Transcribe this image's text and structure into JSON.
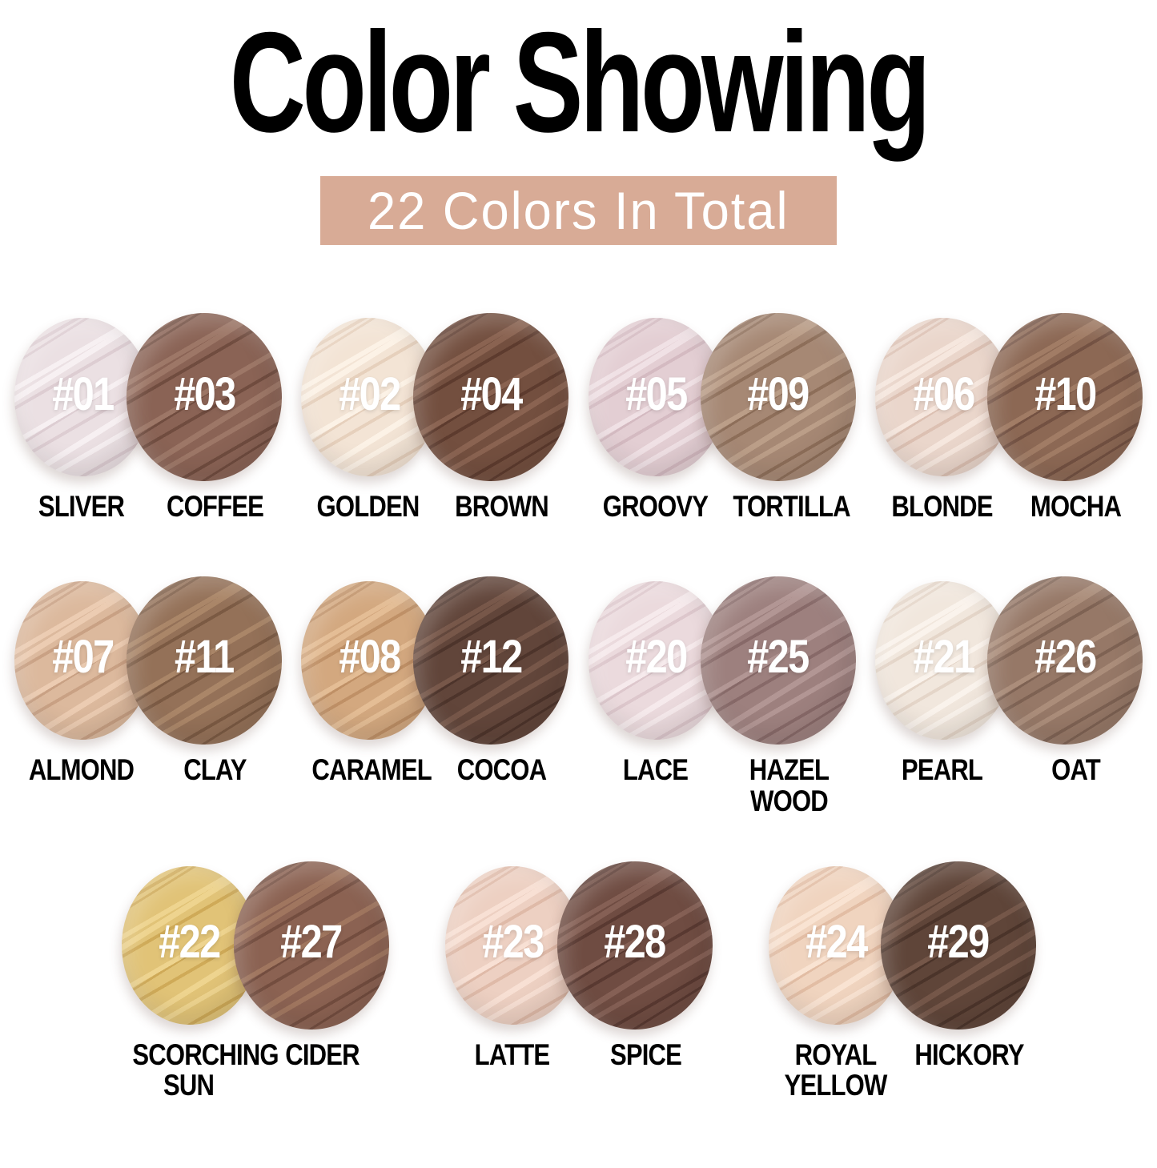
{
  "title": "Color Showing",
  "banner": {
    "text": "22 Colors In Total",
    "bg": "#d8ab96"
  },
  "rows": [
    {
      "pairs": [
        {
          "left": {
            "num": "#01",
            "name": "SLIVER",
            "base": "#ebe0e3",
            "hi": "#f7f0f2",
            "lo": "#ddcdd2"
          },
          "right": {
            "num": "#03",
            "name": "COFFEE",
            "base": "#8a6355",
            "hi": "#9d7767",
            "lo": "#704c3f"
          }
        },
        {
          "left": {
            "num": "#02",
            "name": "GOLDEN",
            "base": "#f3e4d5",
            "hi": "#fcf2e6",
            "lo": "#e6d0bc"
          },
          "right": {
            "num": "#04",
            "name": "BROWN",
            "base": "#734f3f",
            "hi": "#8a6351",
            "lo": "#5d3b2e"
          }
        },
        {
          "left": {
            "num": "#05",
            "name": "GROOVY",
            "base": "#e3ced3",
            "hi": "#f0e1e5",
            "lo": "#d4bac1"
          },
          "right": {
            "num": "#09",
            "name": "TORTILLA",
            "base": "#a68874",
            "hi": "#bb9e88",
            "lo": "#8d6e59"
          }
        },
        {
          "left": {
            "num": "#06",
            "name": "BLONDE",
            "base": "#ead6cb",
            "hi": "#f6e7de",
            "lo": "#dcc0b2"
          },
          "right": {
            "num": "#10",
            "name": "MOCHA",
            "base": "#8c6854",
            "hi": "#a17c65",
            "lo": "#735142"
          }
        }
      ]
    },
    {
      "pairs": [
        {
          "left": {
            "num": "#07",
            "name": "ALMOND",
            "base": "#dcb99d",
            "hi": "#ecccb2",
            "lo": "#c9a184"
          },
          "right": {
            "num": "#11",
            "name": "CLAY",
            "base": "#947158",
            "hi": "#aa8668",
            "lo": "#7b5a43"
          }
        },
        {
          "left": {
            "num": "#08",
            "name": "CARAMEL",
            "base": "#d3a87f",
            "hi": "#e4bd95",
            "lo": "#bf9066"
          },
          "right": {
            "num": "#12",
            "name": "COCOA",
            "base": "#61453a",
            "hi": "#775749",
            "lo": "#4d342b"
          }
        },
        {
          "left": {
            "num": "#20",
            "name": "LACE",
            "base": "#ebdadd",
            "hi": "#f6eaec",
            "lo": "#ddc7cc"
          },
          "right": {
            "num": "#25",
            "name": "HAZEL WOOD",
            "base": "#9d807e",
            "hi": "#b29694",
            "lo": "#876968"
          }
        },
        {
          "left": {
            "num": "#21",
            "name": "PEARL",
            "base": "#f1e7dd",
            "hi": "#faf3ec",
            "lo": "#e4d5c8"
          },
          "right": {
            "num": "#26",
            "name": "OAT",
            "base": "#967867",
            "hi": "#ab8d7a",
            "lo": "#7e6253"
          }
        }
      ]
    },
    {
      "pairs": [
        {
          "left": {
            "num": "#22",
            "name": "SCORCHING SUN",
            "base": "#e1c377",
            "hi": "#eed48f",
            "lo": "#cfaa58"
          },
          "right": {
            "num": "#27",
            "name": "CIDER",
            "base": "#8b6252",
            "hi": "#a0765f",
            "lo": "#734d3f"
          }
        },
        {
          "left": {
            "num": "#23",
            "name": "LATTE",
            "base": "#edd0c2",
            "hi": "#f8e0d4",
            "lo": "#dfbaa8"
          },
          "right": {
            "num": "#28",
            "name": "SPICE",
            "base": "#6f4c42",
            "hi": "#856055",
            "lo": "#593931"
          }
        },
        {
          "left": {
            "num": "#24",
            "name": "ROYAL YELLOW",
            "base": "#f0d4bf",
            "hi": "#f9e3d2",
            "lo": "#e2bda4"
          },
          "right": {
            "num": "#29",
            "name": "HICKORY",
            "base": "#5f4539",
            "hi": "#755749",
            "lo": "#4b342a"
          }
        }
      ]
    }
  ]
}
